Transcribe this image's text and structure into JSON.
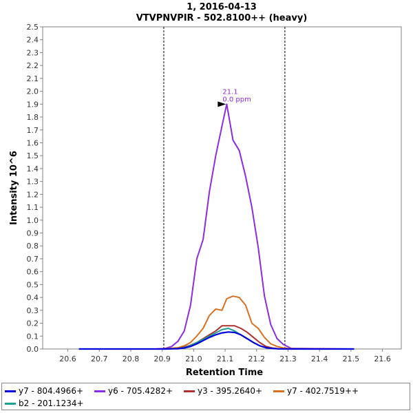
{
  "chart_data": {
    "type": "line",
    "title": "1, 2016-04-13",
    "subtitle": "VTVPNVPIR - 502.8100++ (heavy)",
    "xlabel": "Retention Time",
    "ylabel": "Intensity 10^6",
    "xlim": [
      20.52,
      21.66
    ],
    "ylim": [
      0,
      2.5
    ],
    "x_ticks": [
      "20.6",
      "20.7",
      "20.8",
      "20.9",
      "21.0",
      "21.1",
      "21.2",
      "21.3",
      "21.4",
      "21.5",
      "21.6"
    ],
    "y_ticks": [
      "0.0",
      "0.1",
      "0.2",
      "0.3",
      "0.4",
      "0.5",
      "0.6",
      "0.7",
      "0.8",
      "0.9",
      "1.0",
      "1.1",
      "1.2",
      "1.3",
      "1.4",
      "1.5",
      "1.6",
      "1.7",
      "1.8",
      "1.9",
      "2.0",
      "2.1",
      "2.2",
      "2.3",
      "2.4",
      "2.5"
    ],
    "grid": false,
    "legend_position": "bottom",
    "boundaries": [
      20.905,
      21.29
    ],
    "peak_annotation": {
      "x": 21.105,
      "y": 1.9,
      "label_time": "21.1",
      "label_ppm": "0.0 ppm",
      "color": "#8b2be2"
    },
    "series": [
      {
        "name": "y7 - 804.4966+",
        "color": "#0000dd",
        "x": [
          20.635,
          20.88,
          20.91,
          20.95,
          20.97,
          20.99,
          21.01,
          21.03,
          21.05,
          21.07,
          21.09,
          21.11,
          21.13,
          21.15,
          21.17,
          21.19,
          21.21,
          21.23,
          21.25,
          21.27,
          21.29,
          21.51
        ],
        "y": [
          0,
          0,
          0,
          0.002,
          0.008,
          0.02,
          0.04,
          0.065,
          0.09,
          0.11,
          0.125,
          0.132,
          0.128,
          0.11,
          0.08,
          0.05,
          0.025,
          0.01,
          0.004,
          0.001,
          0,
          0
        ]
      },
      {
        "name": "y6 - 705.4282+",
        "color": "#8b2be2",
        "x": [
          20.635,
          20.88,
          20.91,
          20.93,
          20.95,
          20.97,
          20.99,
          21.01,
          21.03,
          21.05,
          21.07,
          21.09,
          21.105,
          21.125,
          21.145,
          21.165,
          21.185,
          21.205,
          21.225,
          21.245,
          21.265,
          21.285,
          21.31,
          21.51
        ],
        "y": [
          0,
          0,
          0.005,
          0.02,
          0.06,
          0.14,
          0.34,
          0.7,
          0.85,
          1.22,
          1.5,
          1.73,
          1.9,
          1.62,
          1.54,
          1.34,
          1.1,
          0.79,
          0.41,
          0.19,
          0.08,
          0.035,
          0.005,
          0
        ]
      },
      {
        "name": "y3 - 395.2640+",
        "color": "#b03030",
        "x": [
          20.635,
          20.88,
          20.91,
          20.95,
          20.97,
          20.99,
          21.01,
          21.03,
          21.05,
          21.07,
          21.09,
          21.11,
          21.13,
          21.15,
          21.17,
          21.19,
          21.21,
          21.23,
          21.25,
          21.27,
          21.29,
          21.51
        ],
        "y": [
          0,
          0,
          0,
          0.005,
          0.015,
          0.03,
          0.05,
          0.08,
          0.11,
          0.14,
          0.18,
          0.18,
          0.18,
          0.16,
          0.13,
          0.09,
          0.05,
          0.02,
          0.008,
          0.002,
          0,
          0
        ]
      },
      {
        "name": "y7 - 402.7519++",
        "color": "#d87020",
        "x": [
          20.635,
          20.88,
          20.91,
          20.95,
          20.97,
          20.99,
          21.01,
          21.03,
          21.05,
          21.07,
          21.09,
          21.105,
          21.125,
          21.145,
          21.165,
          21.185,
          21.205,
          21.225,
          21.245,
          21.265,
          21.285,
          21.31,
          21.51
        ],
        "y": [
          0,
          0,
          0.002,
          0.01,
          0.025,
          0.05,
          0.1,
          0.16,
          0.26,
          0.31,
          0.3,
          0.39,
          0.41,
          0.4,
          0.34,
          0.2,
          0.16,
          0.09,
          0.04,
          0.02,
          0.008,
          0.002,
          0
        ]
      },
      {
        "name": "b2 - 201.1234+",
        "color": "#1e9e8e",
        "x": [
          20.635,
          20.88,
          20.91,
          20.95,
          20.97,
          20.99,
          21.01,
          21.03,
          21.05,
          21.07,
          21.09,
          21.11,
          21.13,
          21.15,
          21.17,
          21.19,
          21.21,
          21.23,
          21.25,
          21.27,
          21.29,
          21.51
        ],
        "y": [
          0,
          0,
          0,
          0.004,
          0.012,
          0.028,
          0.05,
          0.075,
          0.1,
          0.125,
          0.15,
          0.16,
          0.14,
          0.11,
          0.08,
          0.05,
          0.025,
          0.01,
          0.004,
          0.001,
          0,
          0
        ]
      }
    ]
  }
}
